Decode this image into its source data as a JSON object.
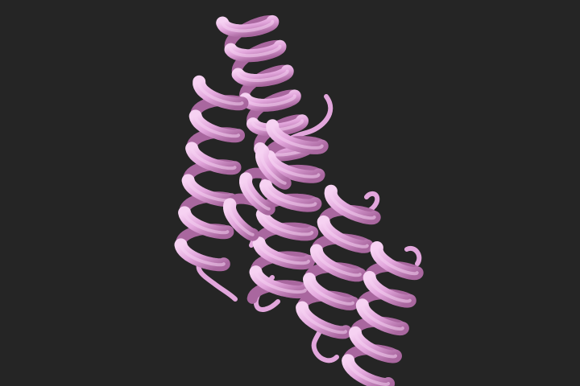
{
  "scene": {
    "subject": "protein-ribbon-structure",
    "background_color": "#252525",
    "ribbon_color": "#e2a6dc",
    "ribbon_highlight": "#f6d2f2",
    "ribbon_shadow": "#a9679f",
    "helix_count": 6
  }
}
